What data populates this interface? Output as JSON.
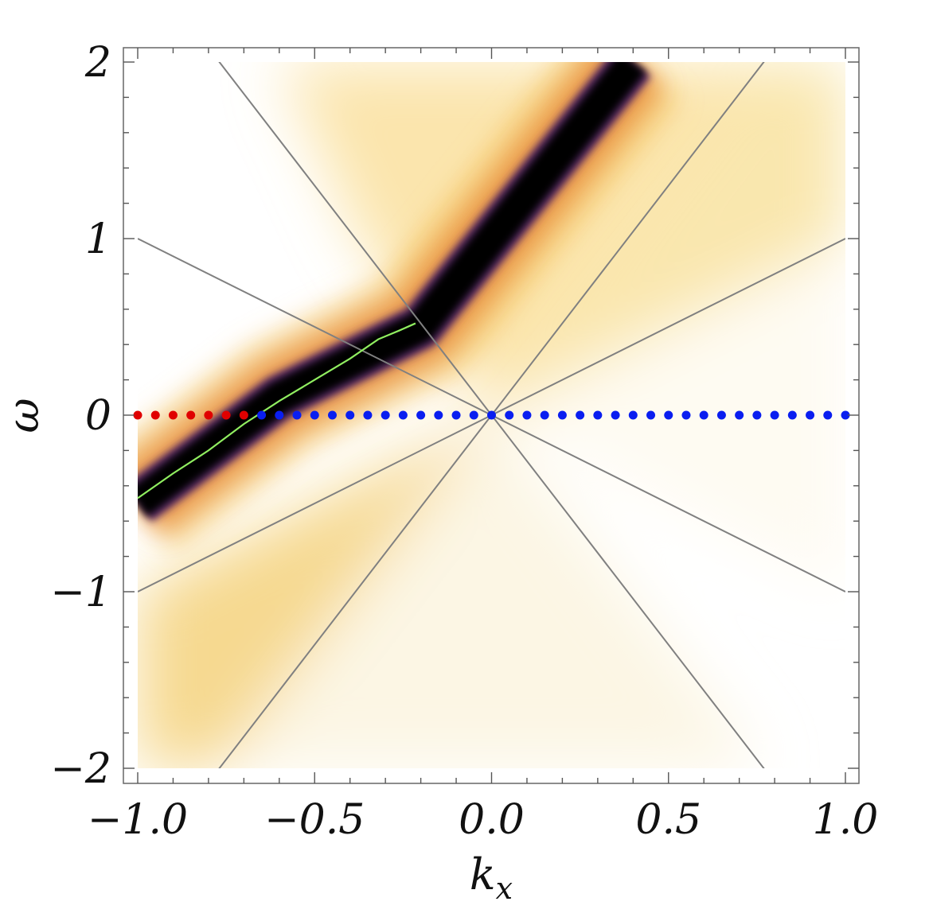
{
  "chart_data": {
    "type": "heatmap",
    "title": "",
    "xlabel": "k",
    "xlabel_subscript": "x",
    "ylabel": "ω",
    "xlim": [
      -1.0,
      1.0
    ],
    "ylim": [
      -2.0,
      2.0
    ],
    "xticks": [
      -1.0,
      -0.5,
      0.0,
      0.5,
      1.0
    ],
    "xtick_labels": [
      "−1.0",
      "−0.5",
      "0.0",
      "0.5",
      "1.0"
    ],
    "yticks": [
      -2,
      -1,
      0,
      1,
      2
    ],
    "ytick_labels": [
      "−2",
      "−1",
      "0",
      "1",
      "2"
    ],
    "grid": false,
    "colormap": [
      "#ffffff",
      "#fbf0c8",
      "#f5c66a",
      "#e8893a",
      "#5a2a6a",
      "#000000"
    ],
    "band": {
      "description_points": [
        [
          -1.0,
          -0.5
        ],
        [
          -0.6,
          0.1
        ],
        [
          -0.2,
          0.5
        ],
        [
          0.0,
          1.0
        ],
        [
          0.2,
          1.5
        ],
        [
          0.4,
          2.0
        ]
      ],
      "color": "#000000"
    },
    "light_cone_lines": [
      {
        "slope": 1,
        "color": "#808080"
      },
      {
        "slope": -1,
        "color": "#808080"
      },
      {
        "slope": 2.6,
        "color": "#808080"
      },
      {
        "slope": -2.6,
        "color": "#808080"
      }
    ],
    "green_curve": {
      "color": "#90ee60",
      "points": [
        [
          -1.0,
          -0.47
        ],
        [
          -0.9,
          -0.33
        ],
        [
          -0.8,
          -0.2
        ],
        [
          -0.7,
          -0.05
        ],
        [
          -0.6,
          0.08
        ],
        [
          -0.5,
          0.2
        ],
        [
          -0.4,
          0.32
        ],
        [
          -0.32,
          0.43
        ],
        [
          -0.26,
          0.48
        ],
        [
          -0.215,
          0.52
        ]
      ]
    },
    "red_dots": {
      "color": "#e00000",
      "x": [
        -1.0,
        -0.95,
        -0.9,
        -0.85,
        -0.8,
        -0.75,
        -0.7
      ],
      "y": 0
    },
    "blue_dots": {
      "color": "#0a1ef0",
      "x": [
        -0.65,
        -0.6,
        -0.55,
        -0.5,
        -0.45,
        -0.4,
        -0.35,
        -0.3,
        -0.25,
        -0.2,
        -0.15,
        -0.1,
        -0.05,
        0.0,
        0.05,
        0.1,
        0.15,
        0.2,
        0.25,
        0.3,
        0.35,
        0.4,
        0.45,
        0.5,
        0.55,
        0.6,
        0.65,
        0.7,
        0.75,
        0.8,
        0.85,
        0.9,
        0.95,
        1.0
      ],
      "y": 0
    }
  }
}
